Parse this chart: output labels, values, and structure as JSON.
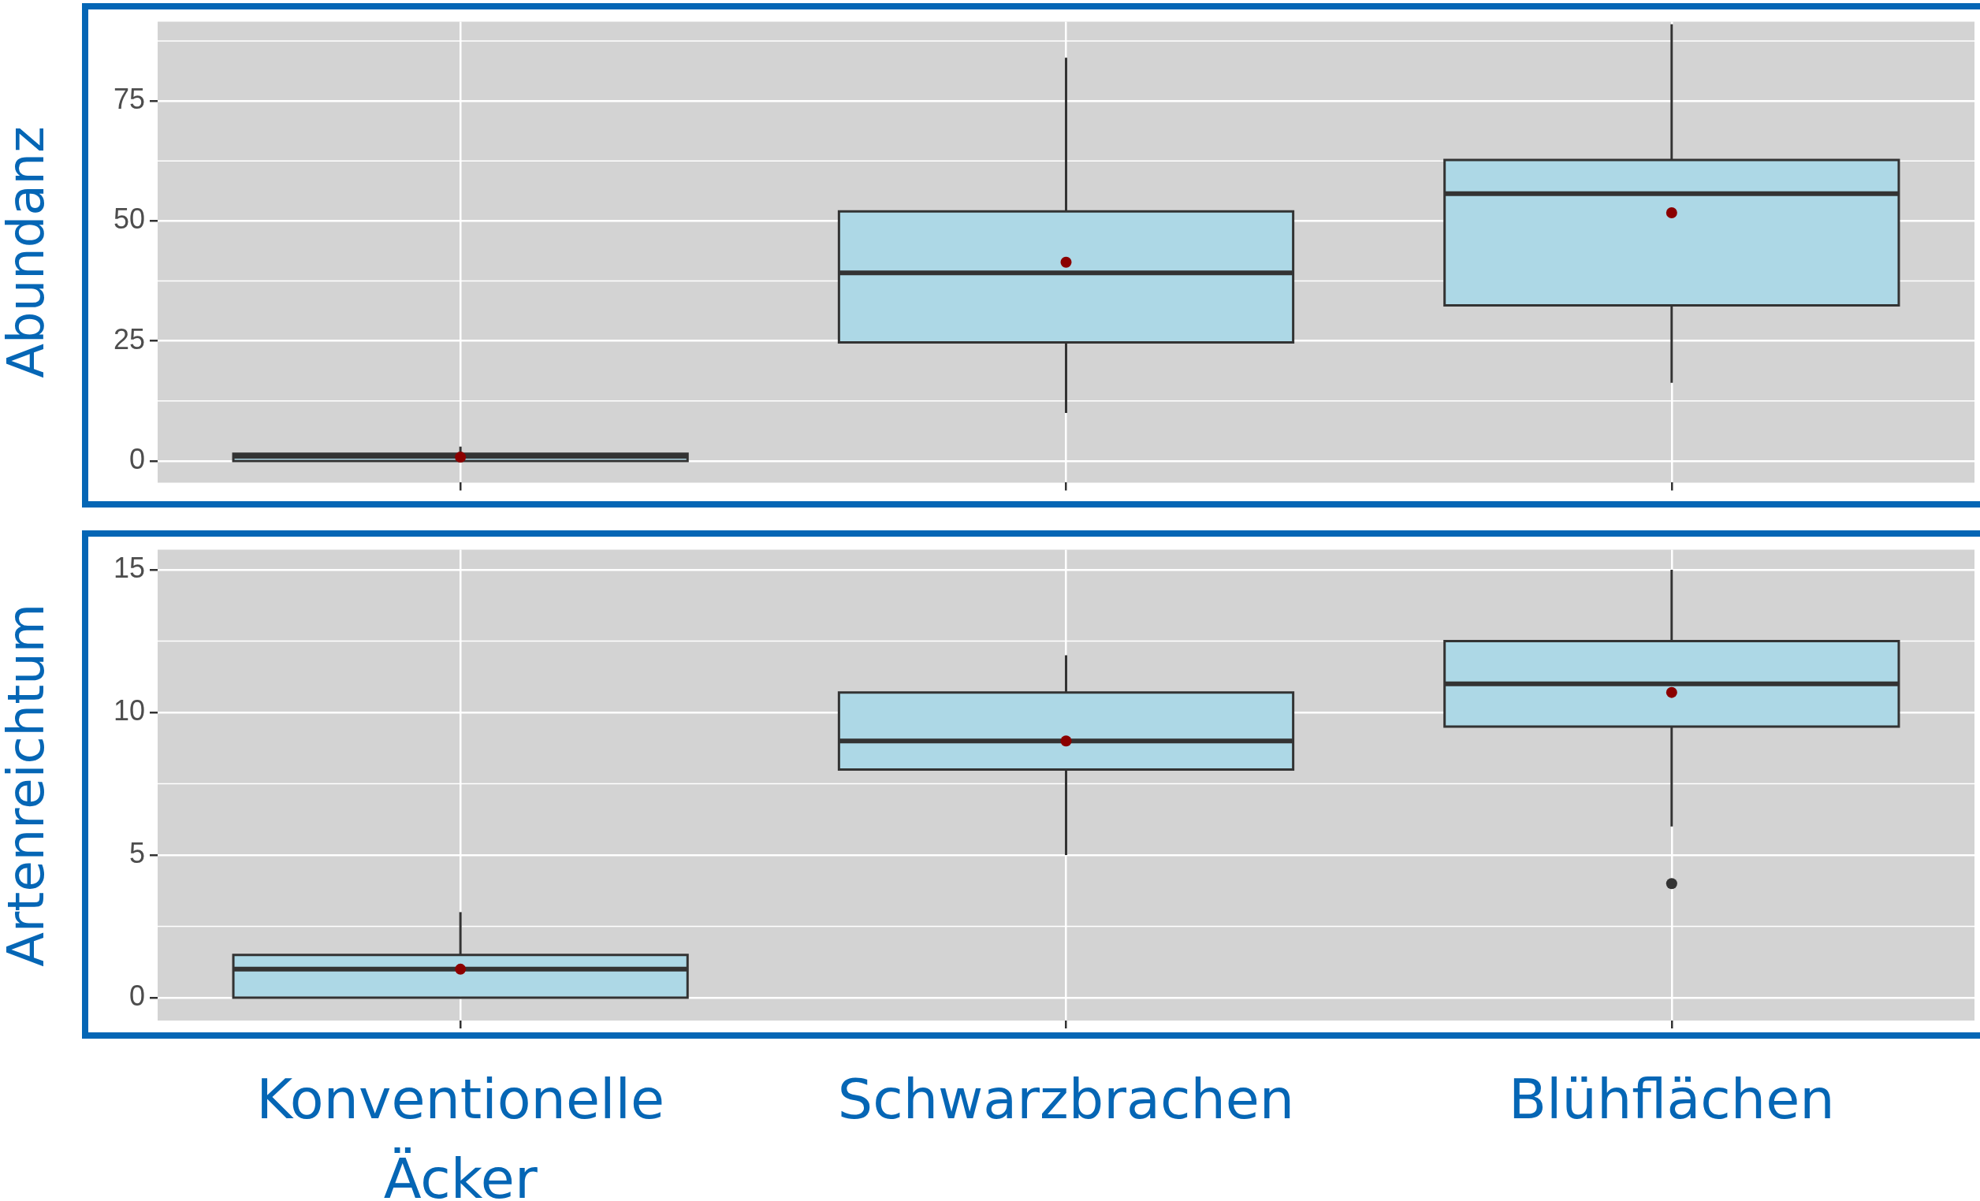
{
  "chart_data": [
    {
      "type": "box",
      "ylabel": "Abundanz",
      "categories": [
        null,
        null,
        null
      ],
      "ylim": [
        -4.5,
        91.5
      ],
      "yticks": [
        0,
        25,
        50,
        75
      ],
      "grid": true,
      "tick_labels": "y",
      "series": [
        {
          "color": "#add8e6",
          "boxes": [
            {
              "low": 0,
              "q1": 0,
              "median": 1,
              "q3": 1.5,
              "high": 3,
              "mean": 0.8
            },
            {
              "low": 10,
              "q1": 24.7,
              "median": 39.2,
              "q3": 52,
              "high": 84,
              "mean": 41.4
            },
            {
              "low": 16.3,
              "q1": 32.4,
              "median": 55.7,
              "q3": 62.7,
              "high": 91,
              "mean": 51.7
            }
          ]
        }
      ]
    },
    {
      "type": "box",
      "ylabel": "Artenreichtum",
      "categories": [
        "Konventionelle Äcker",
        "Schwarzbrachen",
        "Blühflächen"
      ],
      "ylim": [
        -0.8,
        15.7
      ],
      "yticks": [
        0,
        5,
        10,
        15
      ],
      "grid": true,
      "series": [
        {
          "color": "#add8e6",
          "boxes": [
            {
              "low": 0,
              "q1": 0,
              "median": 1,
              "q3": 1.5,
              "high": 3,
              "mean": 1
            },
            {
              "low": 5,
              "q1": 8,
              "median": 9,
              "q3": 10.7,
              "high": 12,
              "mean": 9
            },
            {
              "low": 6,
              "q1": 9.5,
              "median": 11,
              "q3": 12.5,
              "high": 15,
              "mean": 10.7,
              "outliers": [
                4
              ]
            }
          ]
        }
      ]
    }
  ]
}
